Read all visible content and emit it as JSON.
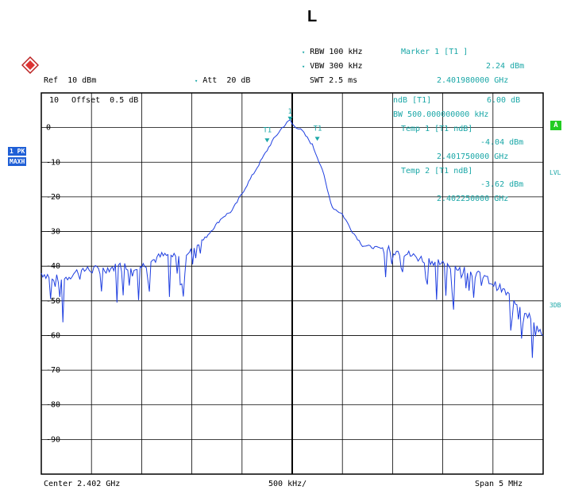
{
  "page_title": "L",
  "header": {
    "rbw": "RBW 100 kHz",
    "vbw": "VBW 300 kHz",
    "swt": "SWT 2.5 ms",
    "ref": "Ref  10 dBm",
    "att": "Att  20 dB"
  },
  "marker": {
    "title": "Marker 1 [T1 ]",
    "level": "2.24 dBm",
    "freq": "2.401980000 GHz"
  },
  "offset_label": "Offset  0.5 dB",
  "top_ref_label": "10",
  "ndb_panel": {
    "line1_label": "ndB [T1]",
    "line1_value": "6.00 dB",
    "line2": "BW 500.000000000 kHz",
    "temp1_label": "Temp 1 [T1 ndB]",
    "temp1_level": "-4.04 dBm",
    "temp1_freq": "2.401750000 GHz",
    "temp2_label": "Temp 2 [T1 ndB]",
    "temp2_level": "-3.62 dBm",
    "temp2_freq": "2.402250000 GHz"
  },
  "left_badges": {
    "trace": "1 PK",
    "mode": "MAXH"
  },
  "right_badges": {
    "a": "A",
    "lvl": "LVL",
    "three_db": "3DB"
  },
  "marker_labels": {
    "m1": "1",
    "t1a": "T1",
    "t1b": "T1"
  },
  "y_ticks": [
    "0",
    "-10",
    "-20",
    "-30",
    "-40",
    "-50",
    "-60",
    "-70",
    "-80",
    "-90"
  ],
  "footer": {
    "center": "Center 2.402 GHz",
    "div": "500 kHz/",
    "span": "Span 5 MHz"
  },
  "colors": {
    "trace": "#1f3fe0",
    "grid": "#000000",
    "annotation": "#1aa7a7",
    "badge": "#1f5fd6",
    "active": "#22cc22"
  },
  "chart_data": {
    "type": "line",
    "xlabel": "",
    "ylabel": "",
    "unit_x": "GHz",
    "unit_y": "dBm",
    "xlim": [
      2.3995,
      2.4045
    ],
    "ylim": [
      -100,
      10
    ],
    "grid": true,
    "series": [
      {
        "x": [
          2.3995,
          2.3997,
          2.3999,
          2.4001,
          2.4003,
          2.4005,
          2.4007,
          2.4009,
          2.4011,
          2.4013,
          2.4014,
          2.4015,
          2.4016,
          2.4017,
          2.4018,
          2.40185,
          2.4019,
          2.40198,
          2.402,
          2.40205,
          2.4021,
          2.4022,
          2.4023,
          2.40235,
          2.4024,
          2.4025,
          2.4026,
          2.4027,
          2.4029,
          2.4031,
          2.4033,
          2.4035,
          2.4037,
          2.4039,
          2.4041,
          2.4043,
          2.4045
        ],
        "values": [
          -42,
          -44,
          -41,
          -41,
          -40,
          -40,
          -37,
          -37,
          -33,
          -26,
          -24,
          -19,
          -14,
          -9,
          -4,
          -2,
          0,
          2.24,
          1,
          0,
          -1,
          -5,
          -12,
          -18,
          -23,
          -25,
          -30,
          -34,
          -35,
          -36,
          -38,
          -39,
          -41,
          -43,
          -47,
          -52,
          -60
        ]
      }
    ],
    "markers": [
      {
        "name": "1",
        "x": 2.40198,
        "y": 2.24
      },
      {
        "name": "T1",
        "x": 2.40175,
        "y": -4.04
      },
      {
        "name": "T1",
        "x": 2.40225,
        "y": -3.62
      }
    ]
  }
}
